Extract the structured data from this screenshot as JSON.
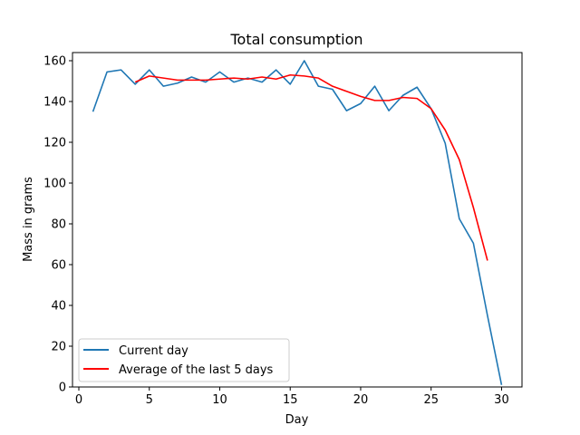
{
  "chart_data": {
    "type": "line",
    "title": "Total consumption",
    "xlabel": "Day",
    "ylabel": "Mass in grams",
    "xlim": [
      -0.45,
      31.45
    ],
    "ylim": [
      0,
      164
    ],
    "xticks": [
      0,
      5,
      10,
      15,
      20,
      25,
      30
    ],
    "yticks": [
      0,
      20,
      40,
      60,
      80,
      100,
      120,
      140,
      160
    ],
    "grid": false,
    "legend_position": "lower left",
    "series": [
      {
        "name": "Current day",
        "color": "#1f77b4",
        "x": [
          1,
          2,
          3,
          4,
          5,
          6,
          7,
          8,
          9,
          10,
          11,
          12,
          13,
          14,
          15,
          16,
          17,
          18,
          19,
          20,
          21,
          22,
          23,
          24,
          25,
          26,
          27,
          28,
          29,
          30
        ],
        "y": [
          135,
          154.5,
          155.5,
          148.5,
          155.5,
          147.5,
          149,
          152,
          149.5,
          154.5,
          149.5,
          151.5,
          149.5,
          155.5,
          148.5,
          160,
          147.5,
          146,
          135.5,
          139,
          147.5,
          135.5,
          143,
          147,
          136.5,
          119.5,
          82.5,
          70.5,
          35,
          1
        ]
      },
      {
        "name": "Average of the last 5 days",
        "color": "#ff0000",
        "x": [
          4,
          5,
          6,
          7,
          8,
          9,
          10,
          11,
          12,
          13,
          14,
          15,
          16,
          17,
          18,
          19,
          20,
          21,
          22,
          23,
          24,
          25,
          26,
          27,
          28,
          29
        ],
        "y": [
          149.5,
          152.5,
          151.5,
          150.5,
          150.5,
          150.5,
          151,
          151.5,
          151,
          152,
          151,
          153,
          152.5,
          151.5,
          147.5,
          145,
          142.5,
          140.5,
          140.5,
          142,
          141.5,
          136.5,
          126,
          111.5,
          88,
          62
        ]
      }
    ]
  }
}
